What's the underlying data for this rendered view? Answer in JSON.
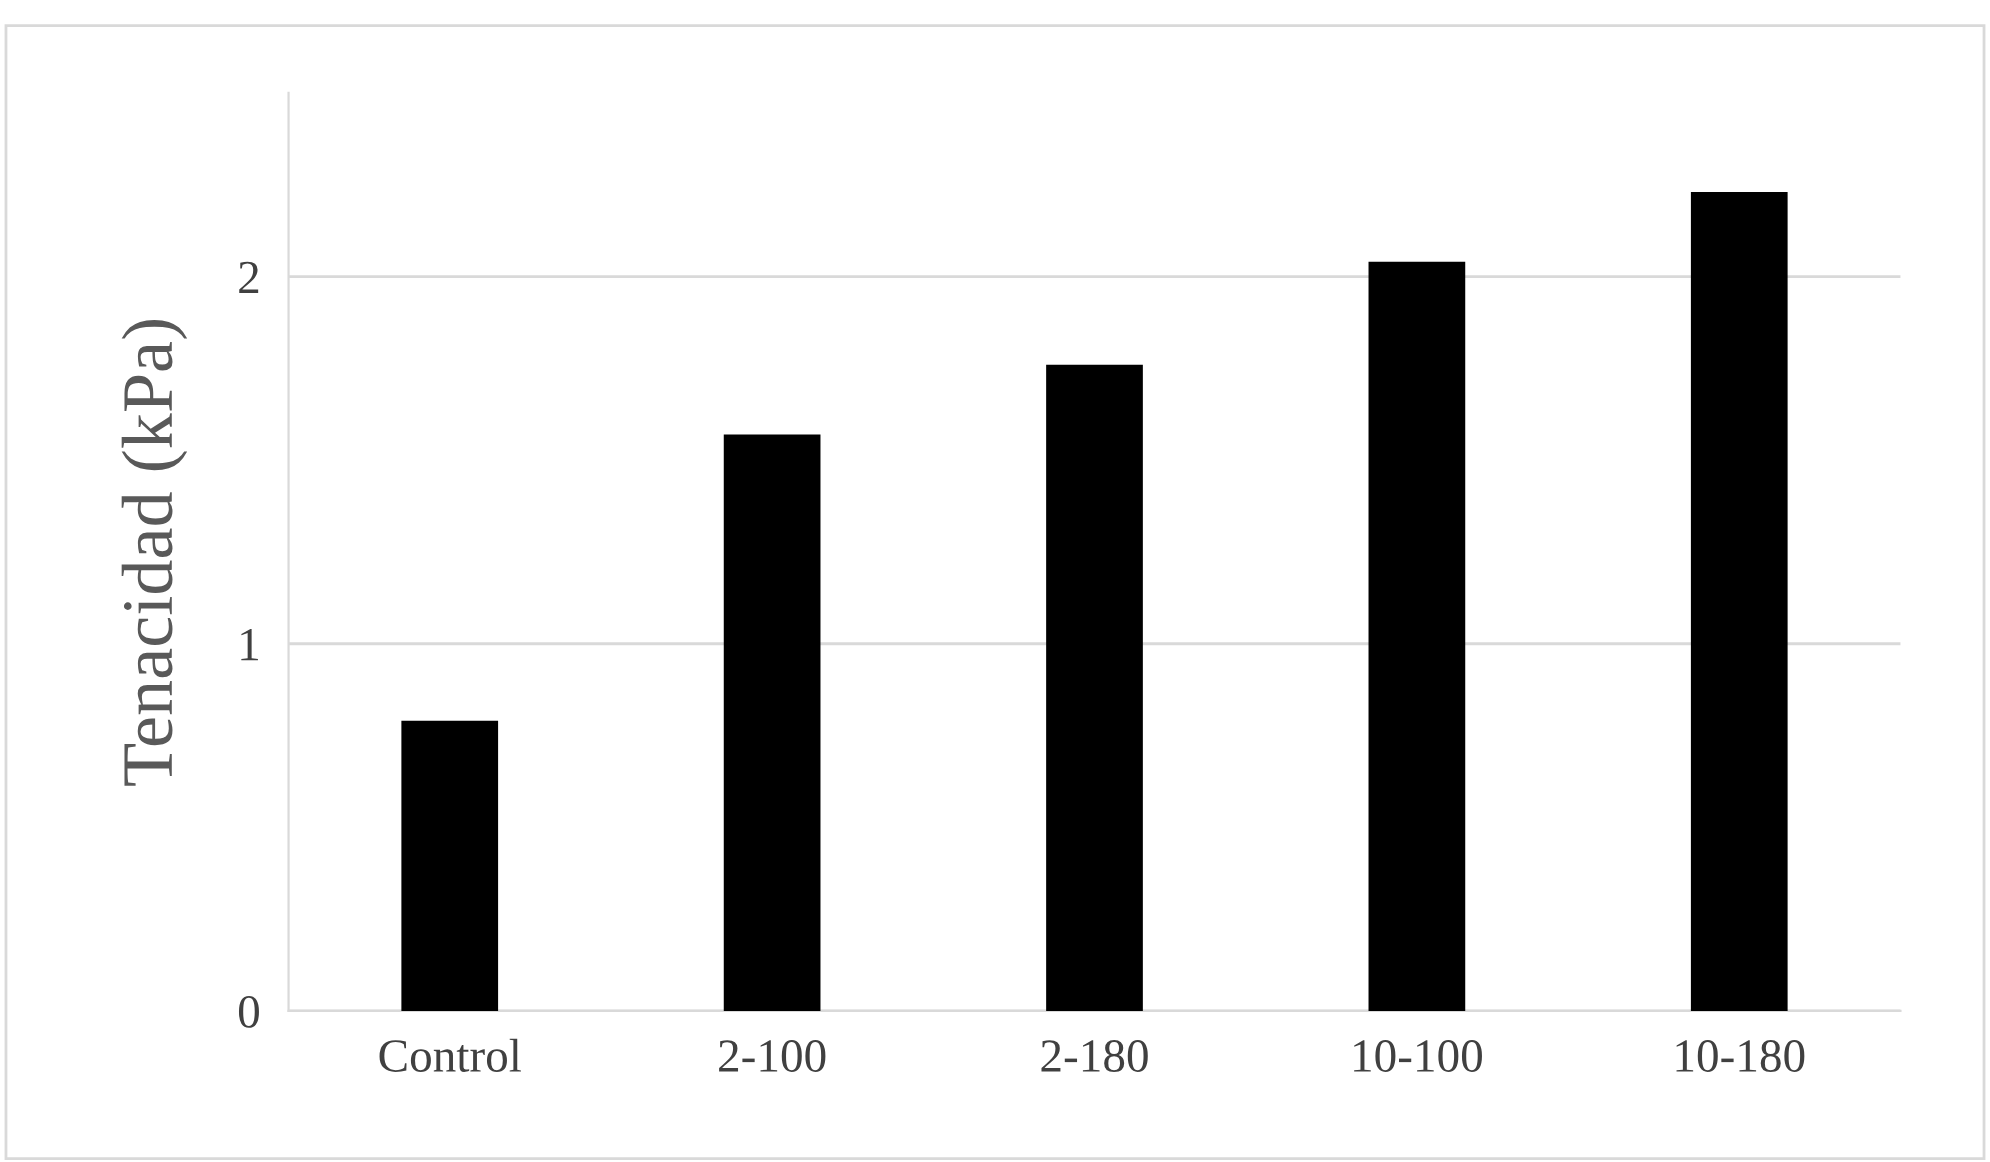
{
  "chart_data": {
    "type": "bar",
    "ylabel": "Tenacidad (kPa)",
    "categories": [
      "Control",
      "2-100",
      "2-180",
      "10-100",
      "10-180"
    ],
    "values": [
      0.79,
      1.57,
      1.76,
      2.04,
      2.23
    ],
    "color": "#000000",
    "ylim": [
      0,
      2.5
    ],
    "yticks": [
      0,
      1,
      2
    ],
    "grid": "y"
  }
}
